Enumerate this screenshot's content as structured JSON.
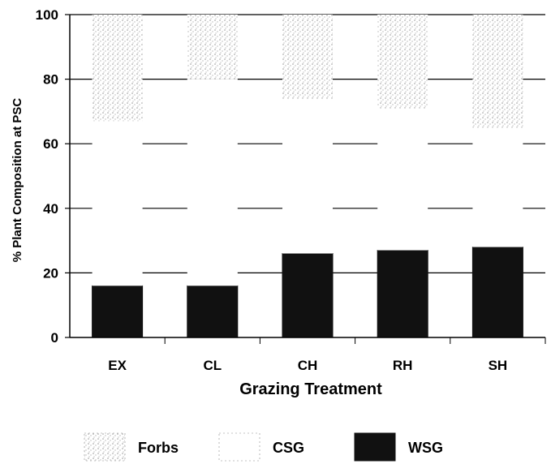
{
  "chart_data": {
    "type": "bar",
    "stacked": true,
    "title": "",
    "xlabel": "Grazing Treatment",
    "ylabel": "% Plant Composition at PSC",
    "categories": [
      "EX",
      "CL",
      "CH",
      "RH",
      "SH"
    ],
    "ylim": [
      0,
      100
    ],
    "yticks": [
      "0",
      "20",
      "40",
      "60",
      "80",
      "100"
    ],
    "grid": true,
    "legend_position": "bottom",
    "series": [
      {
        "name": "WSG",
        "values": [
          16,
          16,
          26,
          27,
          28
        ],
        "color": "#111111",
        "pattern": "solid"
      },
      {
        "name": "CSG",
        "values": [
          51,
          64,
          48,
          44,
          37
        ],
        "color": "#ffffff",
        "pattern": "white"
      },
      {
        "name": "Forbs",
        "values": [
          33,
          20,
          26,
          29,
          35
        ],
        "color": "#d6d6d6",
        "pattern": "stipple"
      }
    ]
  }
}
